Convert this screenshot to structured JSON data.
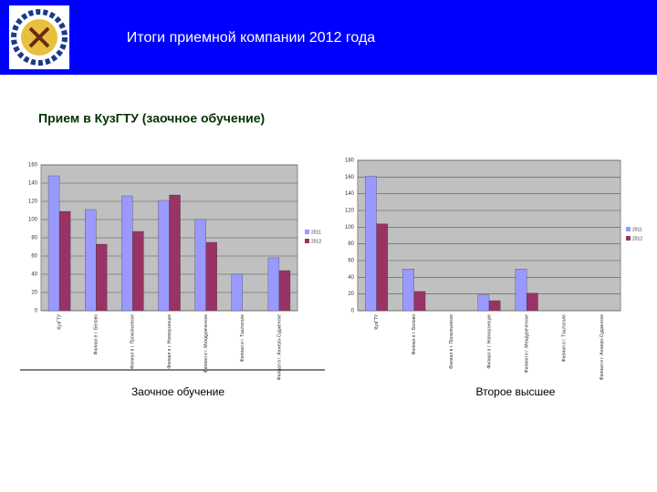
{
  "header": {
    "title": "Итоги приемной компании 2012 года"
  },
  "subtitle": "Прием в КузГТУ (заочное обучение)",
  "chart_data": [
    {
      "type": "bar",
      "title": "Заочное обучение",
      "categories": [
        "КузГТУ",
        "Филиал в г. Белово",
        "Филиал в г. Прокопьевске",
        "Филиал в г. Новокузнецке",
        "Филиал в г. Междуреченске",
        "Филиал в г. Таштаголе",
        "Филиал в г. Анжеро-Судженске"
      ],
      "series": [
        {
          "name": "2011",
          "color": "#9999ff",
          "values": [
            148,
            111,
            126,
            121,
            100,
            40,
            58
          ]
        },
        {
          "name": "2012",
          "color": "#993366",
          "values": [
            109,
            73,
            87,
            127,
            75,
            null,
            44
          ]
        }
      ],
      "ylim": [
        0,
        160
      ],
      "yticks": [
        0,
        20,
        40,
        60,
        80,
        100,
        120,
        140,
        160
      ],
      "grid": true,
      "legend": "right"
    },
    {
      "type": "bar",
      "title": "Второе высшее",
      "categories": [
        "КузГТУ",
        "Филиал в г. Белово",
        "Филиал в г. Прокопьевске",
        "Филиал в г. Новокузнецке",
        "Филиал в г. Междуреченске",
        "Филиал в г. Таштаголе",
        "Филиал в г. Анжеро-Судженске"
      ],
      "series": [
        {
          "name": "2011",
          "color": "#9999ff",
          "values": [
            161,
            50,
            null,
            19,
            50,
            null,
            null
          ]
        },
        {
          "name": "2012",
          "color": "#993366",
          "values": [
            104,
            23,
            null,
            12,
            21,
            null,
            null
          ]
        }
      ],
      "ylim": [
        0,
        180
      ],
      "yticks": [
        0,
        20,
        40,
        60,
        80,
        100,
        120,
        140,
        160,
        180
      ],
      "grid": true,
      "legend": "right"
    }
  ]
}
